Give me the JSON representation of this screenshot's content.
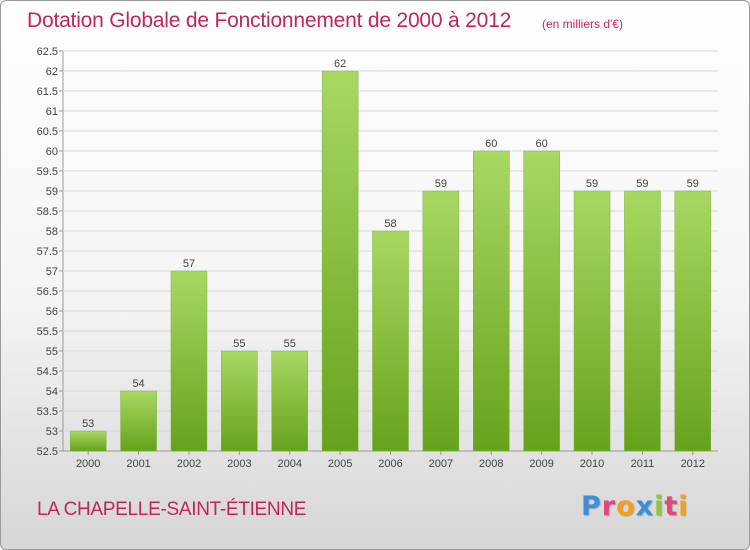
{
  "title": "Dotation Globale de Fonctionnement de 2000 à 2012",
  "units": "(en milliers d'€)",
  "commune": "LA CHAPELLE-SAINT-ÉTIENNE",
  "logo": {
    "letters": [
      "P",
      "r",
      "o",
      "x",
      "i",
      "t",
      "i"
    ],
    "colors": [
      "#3a8fd6",
      "#e5457a",
      "#f2a11b",
      "#3a8fd6",
      "#8cc63f",
      "#e5457a",
      "#f2a11b"
    ]
  },
  "colors": {
    "bar_light": "#a8d862",
    "bar_dark": "#66a21c",
    "text": "#c0265a",
    "grid": "#d8d8d8"
  },
  "chart_data": {
    "type": "bar",
    "categories": [
      "2000",
      "2001",
      "2002",
      "2003",
      "2004",
      "2005",
      "2006",
      "2007",
      "2008",
      "2009",
      "2010",
      "2011",
      "2012"
    ],
    "values": [
      53,
      54,
      57,
      55,
      55,
      62,
      58,
      59,
      60,
      60,
      59,
      59,
      59
    ],
    "value_labels": [
      "53",
      "54",
      "57",
      "55",
      "55",
      "62",
      "58",
      "59",
      "60",
      "60",
      "59",
      "59",
      "59"
    ],
    "ylim": [
      52.5,
      62.5
    ],
    "yticks": [
      "52.5",
      "53",
      "53.5",
      "54",
      "54.5",
      "55",
      "55.5",
      "56",
      "56.5",
      "57",
      "57.5",
      "58",
      "58.5",
      "59",
      "59.5",
      "60",
      "60.5",
      "61",
      "61.5",
      "62",
      "62.5"
    ],
    "grid": true
  }
}
